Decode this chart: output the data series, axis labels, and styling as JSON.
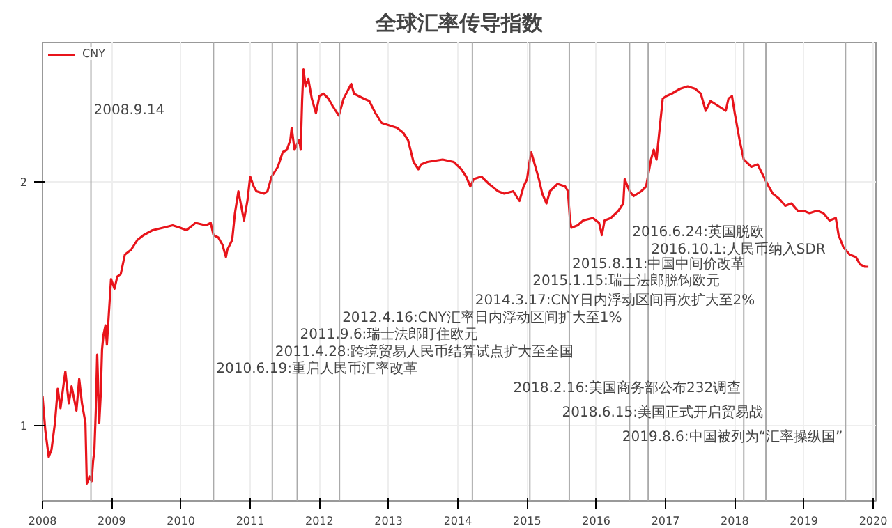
{
  "chart_data": {
    "type": "line",
    "title": "全球汇率传导指数",
    "x": [
      2008.0,
      2008.04,
      2008.09,
      2008.13,
      2008.18,
      2008.22,
      2008.26,
      2008.31,
      2008.33,
      2008.38,
      2008.42,
      2008.49,
      2008.53,
      2008.57,
      2008.62,
      2008.64,
      2008.68,
      2008.71,
      2008.73,
      2008.75,
      2008.77,
      2008.79,
      2008.82,
      2008.84,
      2008.86,
      2008.88,
      2008.91,
      2008.93,
      2008.97,
      2008.99,
      2009.04,
      2009.08,
      2009.13,
      2009.19,
      2009.28,
      2009.37,
      2009.46,
      2009.59,
      2009.74,
      2009.88,
      2009.99,
      2010.08,
      2010.21,
      2010.36,
      2010.43,
      2010.47,
      2010.54,
      2010.6,
      2010.65,
      2010.67,
      2010.74,
      2010.78,
      2010.83,
      2010.87,
      2010.91,
      2010.96,
      2011.0,
      2011.05,
      2011.09,
      2011.2,
      2011.25,
      2011.31,
      2011.4,
      2011.47,
      2011.53,
      2011.58,
      2011.6,
      2011.64,
      2011.69,
      2011.71,
      2011.73,
      2011.75,
      2011.77,
      2011.8,
      2011.84,
      2011.89,
      2011.95,
      2012.0,
      2012.06,
      2012.13,
      2012.19,
      2012.28,
      2012.35,
      2012.46,
      2012.5,
      2012.57,
      2012.64,
      2012.72,
      2012.81,
      2012.9,
      2013.01,
      2013.12,
      2013.21,
      2013.28,
      2013.36,
      2013.43,
      2013.47,
      2013.56,
      2013.78,
      2013.94,
      2014.05,
      2014.12,
      2014.18,
      2014.23,
      2014.34,
      2014.45,
      2014.58,
      2014.67,
      2014.8,
      2014.89,
      2014.95,
      2015.0,
      2015.04,
      2015.06,
      2015.11,
      2015.17,
      2015.22,
      2015.28,
      2015.33,
      2015.44,
      2015.55,
      2015.59,
      2015.62,
      2015.64,
      2015.73,
      2015.81,
      2015.95,
      2016.04,
      2016.08,
      2016.12,
      2016.21,
      2016.32,
      2016.39,
      2016.41,
      2016.48,
      2016.54,
      2016.65,
      2016.72,
      2016.79,
      2016.83,
      2016.87,
      2016.92,
      2016.96,
      2017.01,
      2017.09,
      2017.21,
      2017.32,
      2017.43,
      2017.51,
      2017.58,
      2017.65,
      2017.76,
      2017.87,
      2017.91,
      2017.96,
      2018.0,
      2018.07,
      2018.13,
      2018.24,
      2018.33,
      2018.4,
      2018.49,
      2018.55,
      2018.64,
      2018.73,
      2018.82,
      2018.91,
      2018.99,
      2019.08,
      2019.19,
      2019.28,
      2019.37,
      2019.46,
      2019.5,
      2019.57,
      2019.66,
      2019.75,
      2019.81,
      2019.88,
      2019.93
    ],
    "series": [
      {
        "name": "CNY",
        "color": "#e8141b",
        "values": [
          1.12,
          0.98,
          0.87,
          0.9,
          1.01,
          1.15,
          1.07,
          1.18,
          1.22,
          1.09,
          1.16,
          1.06,
          1.19,
          1.09,
          1.01,
          0.76,
          0.79,
          0.77,
          0.85,
          0.9,
          1.06,
          1.29,
          1.01,
          1.12,
          1.31,
          1.37,
          1.41,
          1.33,
          1.51,
          1.6,
          1.56,
          1.61,
          1.62,
          1.7,
          1.72,
          1.76,
          1.78,
          1.8,
          1.81,
          1.82,
          1.81,
          1.8,
          1.83,
          1.82,
          1.83,
          1.78,
          1.77,
          1.74,
          1.69,
          1.72,
          1.76,
          1.87,
          1.96,
          1.9,
          1.84,
          1.92,
          2.02,
          1.98,
          1.96,
          1.95,
          1.96,
          2.02,
          2.06,
          2.12,
          2.13,
          2.17,
          2.22,
          2.13,
          2.16,
          2.17,
          2.13,
          2.33,
          2.46,
          2.39,
          2.42,
          2.34,
          2.28,
          2.35,
          2.36,
          2.34,
          2.31,
          2.27,
          2.34,
          2.4,
          2.36,
          2.35,
          2.34,
          2.33,
          2.28,
          2.24,
          2.23,
          2.22,
          2.2,
          2.17,
          2.08,
          2.05,
          2.07,
          2.08,
          2.09,
          2.08,
          2.05,
          2.02,
          1.98,
          2.01,
          2.02,
          1.99,
          1.96,
          1.95,
          1.96,
          1.92,
          1.98,
          2.01,
          2.09,
          2.12,
          2.07,
          2.01,
          1.95,
          1.91,
          1.96,
          1.99,
          1.98,
          1.96,
          1.84,
          1.81,
          1.82,
          1.84,
          1.85,
          1.83,
          1.78,
          1.84,
          1.85,
          1.88,
          1.91,
          2.01,
          1.96,
          1.94,
          1.96,
          1.98,
          2.09,
          2.13,
          2.09,
          2.23,
          2.34,
          2.35,
          2.36,
          2.38,
          2.39,
          2.38,
          2.36,
          2.29,
          2.33,
          2.31,
          2.29,
          2.34,
          2.35,
          2.28,
          2.17,
          2.09,
          2.06,
          2.07,
          2.03,
          1.98,
          1.95,
          1.93,
          1.9,
          1.91,
          1.88,
          1.88,
          1.87,
          1.88,
          1.87,
          1.84,
          1.85,
          1.78,
          1.73,
          1.7,
          1.69,
          1.66,
          1.65,
          1.65
        ]
      }
    ],
    "xlim": [
      2008,
      2020.04
    ],
    "ylim": [
      0.69,
      2.57
    ],
    "xticks": [
      2008,
      2009,
      2010,
      2011,
      2012,
      2013,
      2014,
      2015,
      2016,
      2017,
      2018,
      2019,
      2020
    ],
    "yticks": [
      1,
      2
    ],
    "grid": true,
    "legend": "top left",
    "line_style": "solid",
    "marker": "none",
    "ref_lines": [
      {
        "axis": "x",
        "value": 2008.7,
        "color": "#aaaaaa"
      },
      {
        "axis": "x",
        "value": 2010.47,
        "color": "#aaaaaa"
      },
      {
        "axis": "x",
        "value": 2011.32,
        "color": "#aaaaaa"
      },
      {
        "axis": "x",
        "value": 2011.68,
        "color": "#aaaaaa"
      },
      {
        "axis": "x",
        "value": 2012.29,
        "color": "#aaaaaa"
      },
      {
        "axis": "x",
        "value": 2014.21,
        "color": "#aaaaaa"
      },
      {
        "axis": "x",
        "value": 2015.04,
        "color": "#aaaaaa"
      },
      {
        "axis": "x",
        "value": 2015.61,
        "color": "#aaaaaa"
      },
      {
        "axis": "x",
        "value": 2016.48,
        "color": "#aaaaaa"
      },
      {
        "axis": "x",
        "value": 2016.75,
        "color": "#aaaaaa"
      },
      {
        "axis": "x",
        "value": 2018.13,
        "color": "#aaaaaa"
      },
      {
        "axis": "x",
        "value": 2018.45,
        "color": "#aaaaaa"
      },
      {
        "axis": "x",
        "value": 2019.6,
        "color": "#aaaaaa"
      }
    ],
    "annotations": [
      {
        "text": "2008.9.14",
        "x": 2008.7,
        "y": 2.3
      },
      {
        "text": "2010.6.19:重启人民币汇率改革",
        "x": 2010.47,
        "y": 1.23
      },
      {
        "text": "2011.4.28:跨境贸易人民币结算试点扩大至全国",
        "x": 2011.32,
        "y": 1.3
      },
      {
        "text": "2011.9.6:瑞士法郎盯住欧元",
        "x": 2011.68,
        "y": 1.37
      },
      {
        "text": "2012.4.16:CNY汇率日内浮动区间扩大至1%",
        "x": 2012.29,
        "y": 1.44
      },
      {
        "text": "2014.3.17:CNY日内浮动区间再次扩大至2%",
        "x": 2014.21,
        "y": 1.51
      },
      {
        "text": "2015.1.15:瑞士法郎脱钩欧元",
        "x": 2015.04,
        "y": 1.59
      },
      {
        "text": "2015.8.11:中国中间价改革",
        "x": 2015.61,
        "y": 1.66
      },
      {
        "text": "2016.6.24:英国脱欧",
        "x": 2016.48,
        "y": 1.79
      },
      {
        "text": "2016.10.1:人民币纳入SDR",
        "x": 2016.75,
        "y": 1.72
      },
      {
        "text": "2018.2.16:美国商务部公布232调查",
        "x": 2018.13,
        "y": 1.15
      },
      {
        "text": "2018.6.15:美国正式开启贸易战",
        "x": 2018.45,
        "y": 1.05
      },
      {
        "text": "2019.8.6:中国被列为“汇率操纵国”",
        "x": 2019.6,
        "y": 0.95
      }
    ]
  }
}
